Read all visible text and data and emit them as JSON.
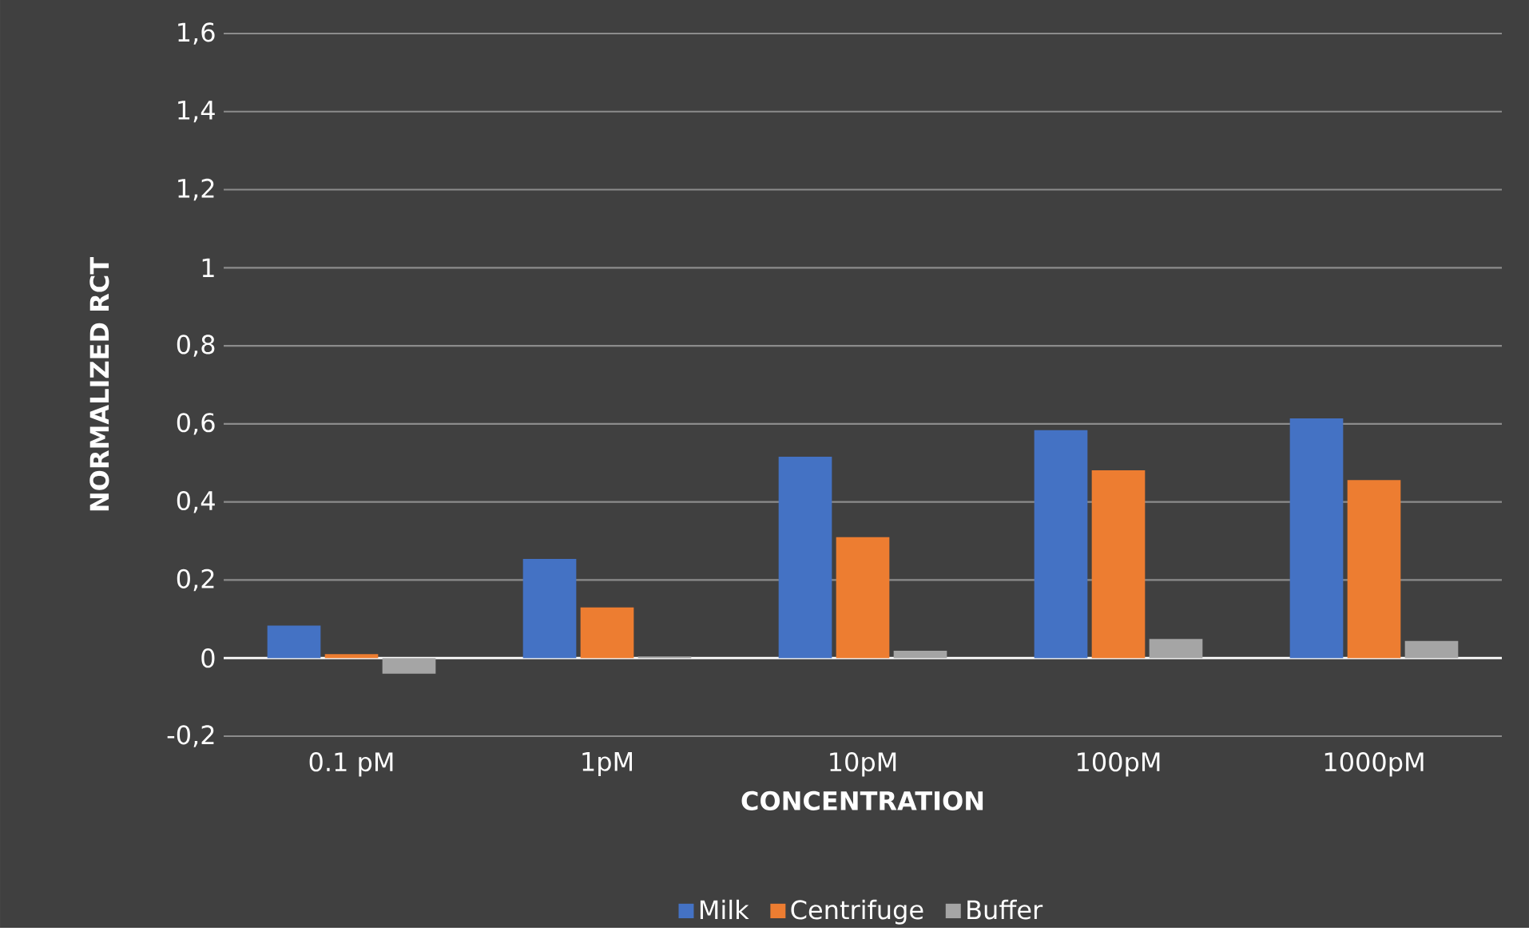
{
  "chart_data": {
    "type": "bar",
    "xlabel": "CONCENTRATION",
    "ylabel": "NORMALIZED RCT",
    "categories": [
      "0.1 pM",
      "1pM",
      "10pM",
      "100pM",
      "1000pM"
    ],
    "series": [
      {
        "name": "Milk",
        "color": "#4472c4",
        "values": [
          0.083,
          0.254,
          0.516,
          0.584,
          0.614
        ]
      },
      {
        "name": "Centrifuge",
        "color": "#ed7d31",
        "values": [
          0.01,
          0.13,
          0.31,
          0.481,
          0.456
        ]
      },
      {
        "name": "Buffer",
        "color": "#a5a5a5",
        "values": [
          -0.04,
          0.004,
          0.019,
          0.049,
          0.044
        ]
      }
    ],
    "ylim": [
      -0.2,
      1.6
    ],
    "yticks": [
      {
        "value": -0.2,
        "label": "-0,2"
      },
      0,
      {
        "value": 0.2,
        "label": "0,2"
      },
      {
        "value": 0.4,
        "label": "0,4"
      },
      {
        "value": 0.6,
        "label": "0,6"
      },
      {
        "value": 0.8,
        "label": "0,8"
      },
      1,
      {
        "value": 1.2,
        "label": "1,2"
      },
      {
        "value": 1.4,
        "label": "1,4"
      },
      {
        "value": 1.6,
        "label": "1,6"
      }
    ],
    "grid": "y",
    "legend": "bottom"
  }
}
